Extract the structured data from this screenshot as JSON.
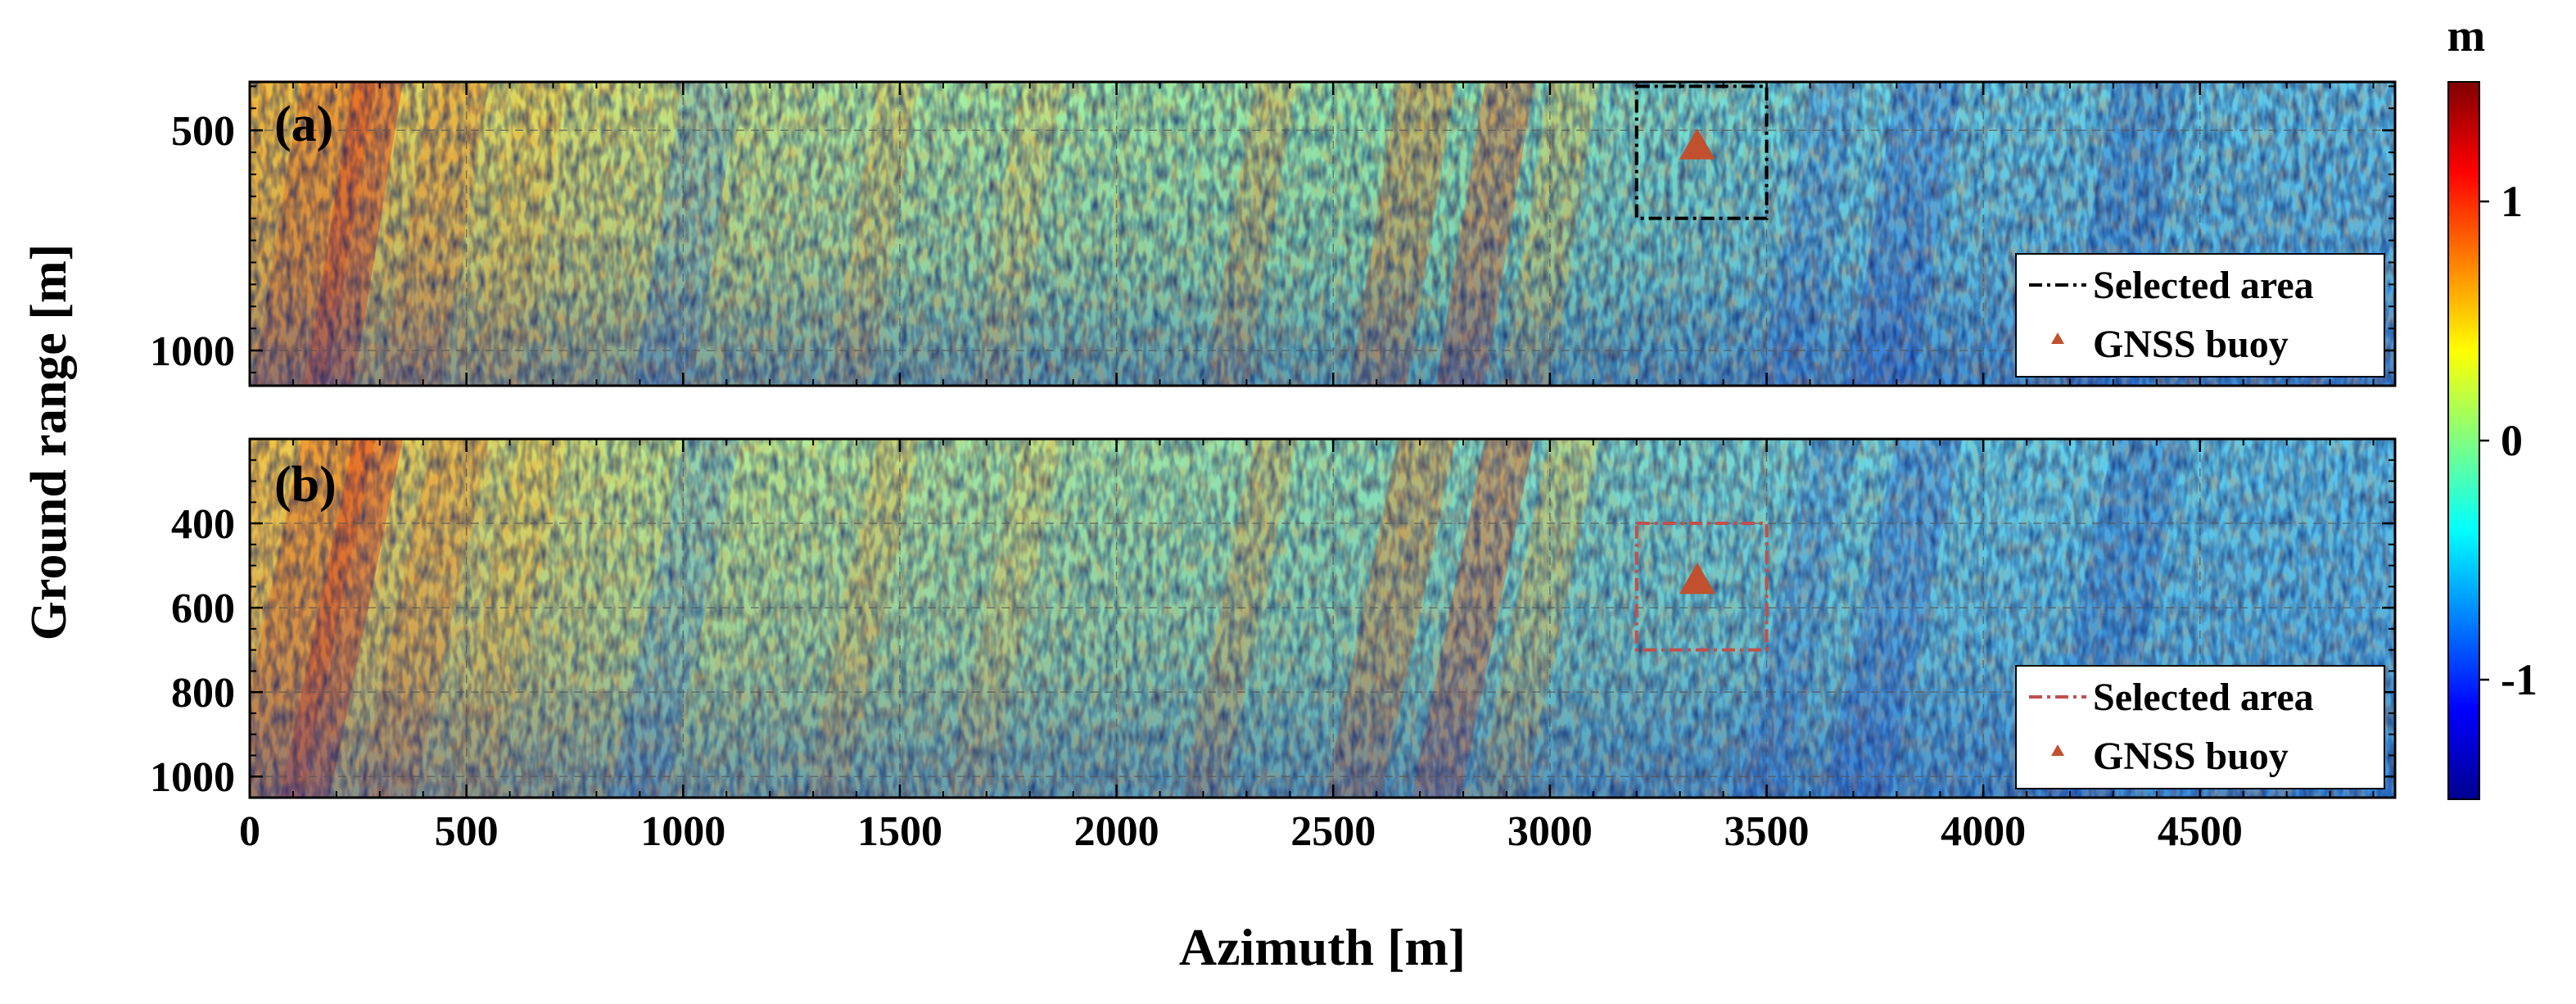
{
  "chart_data": {
    "type": "heatmap",
    "xlabel": "Azimuth [m]",
    "ylabel": "Ground range [m]",
    "xlim": [
      0,
      4950
    ],
    "x_ticks": [
      0,
      500,
      1000,
      1500,
      2000,
      2500,
      3000,
      3500,
      4000,
      4500
    ],
    "colorbar": {
      "unit": "m",
      "range": [
        -1.5,
        1.5
      ],
      "ticks": [
        1,
        0,
        -1
      ],
      "colormap": [
        "#00008f",
        "#0000ff",
        "#0080ff",
        "#00ffff",
        "#80ff80",
        "#ffff00",
        "#ff8000",
        "#ff0000",
        "#800000"
      ]
    },
    "panels": [
      {
        "label": "(a)",
        "ylim": [
          390,
          1080
        ],
        "y_ticks": [
          500,
          1000
        ],
        "selected_area": {
          "x": [
            3200,
            3500
          ],
          "y": [
            400,
            700
          ],
          "color": "#000000"
        },
        "buoy": {
          "x": 3340,
          "y": 540
        },
        "legend": {
          "location": "bottom-right",
          "entries": [
            "Selected area",
            "GNSS buoy"
          ]
        }
      },
      {
        "label": "(b)",
        "ylim": [
          200,
          1050
        ],
        "y_ticks": [
          400,
          600,
          800,
          1000
        ],
        "selected_area": {
          "x": [
            3200,
            3500
          ],
          "y": [
            400,
            700
          ],
          "color": "#c0504d"
        },
        "buoy": {
          "x": 3340,
          "y": 540
        },
        "legend": {
          "location": "bottom-right",
          "entries": [
            "Selected area",
            "GNSS buoy"
          ]
        }
      }
    ]
  },
  "colors": {
    "buoy": "#c1502e",
    "frame": "#000000"
  }
}
